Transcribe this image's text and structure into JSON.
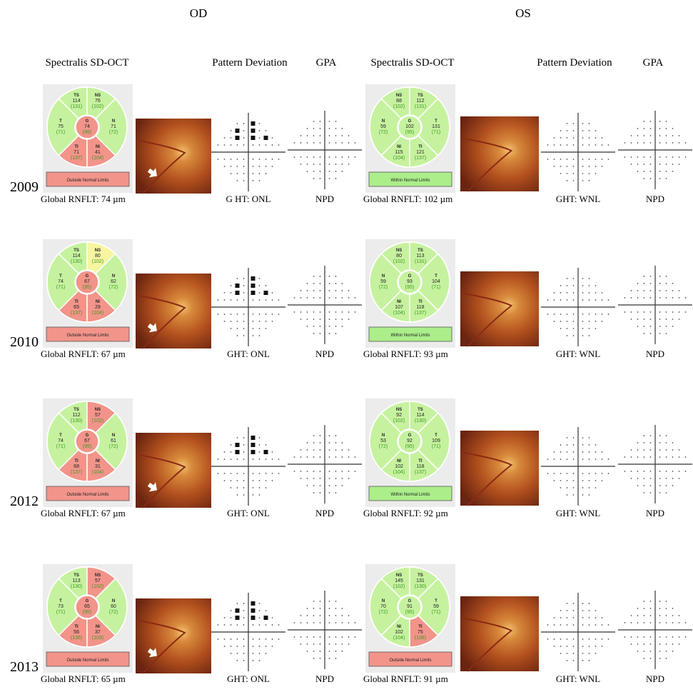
{
  "header": {
    "od": "OD",
    "os": "OS"
  },
  "columns": {
    "od": [
      "Spectralis SD-OCT",
      "Pattern Deviation",
      "GPA"
    ],
    "os": [
      "Spectralis SD-OCT",
      "Pattern Deviation",
      "GPA"
    ]
  },
  "rows": [
    {
      "year": "2009",
      "od": {
        "sectors": [
          {
            "name": "TS",
            "value": 114,
            "normal": "(131)",
            "color": "#c6f29f"
          },
          {
            "name": "NS",
            "value": 76,
            "normal": "(102)",
            "color": "#c6f29f"
          },
          {
            "name": "T",
            "value": 75,
            "normal": "(71)",
            "color": "#c6f29f"
          },
          {
            "name": "N",
            "value": 71,
            "normal": "(72)",
            "color": "#c6f29f"
          },
          {
            "name": "TI",
            "value": 71,
            "normal": "(137)",
            "color": "#f2948a"
          },
          {
            "name": "NI",
            "value": 41,
            "normal": "(104)",
            "color": "#f2948a"
          },
          {
            "name": "G",
            "value": 74,
            "normal": "(95)",
            "color": "#f2948a"
          }
        ],
        "status": {
          "text": "Outside Normal Limits",
          "color": "#f2948a"
        },
        "global": "Global RNFLT: 74 µm",
        "pd": "G HT: ONL",
        "gpa": "NPD"
      },
      "os": {
        "sectors": [
          {
            "name": "NS",
            "value": 88,
            "normal": "(102)",
            "color": "#c6f29f"
          },
          {
            "name": "TS",
            "value": 112,
            "normal": "(131)",
            "color": "#c6f29f"
          },
          {
            "name": "N",
            "value": 59,
            "normal": "(72)",
            "color": "#c6f29f"
          },
          {
            "name": "T",
            "value": 131,
            "normal": "(71)",
            "color": "#c6f29f"
          },
          {
            "name": "NI",
            "value": 115,
            "normal": "(104)",
            "color": "#c6f29f"
          },
          {
            "name": "TI",
            "value": 121,
            "normal": "(137)",
            "color": "#c6f29f"
          },
          {
            "name": "G",
            "value": 102,
            "normal": "(95)",
            "color": "#c6f29f"
          }
        ],
        "status": {
          "text": "Within Normal Limits",
          "color": "#abee8a"
        },
        "global": "Global RNFLT: 102 µm",
        "pd": "GHT: WNL",
        "gpa": "NPD"
      }
    },
    {
      "year": "2010",
      "od": {
        "sectors": [
          {
            "name": "TS",
            "value": 114,
            "normal": "(130)",
            "color": "#c6f29f"
          },
          {
            "name": "NS",
            "value": 80,
            "normal": "(102)",
            "color": "#f6f5a0"
          },
          {
            "name": "T",
            "value": 74,
            "normal": "(71)",
            "color": "#c6f29f"
          },
          {
            "name": "N",
            "value": 62,
            "normal": "(72)",
            "color": "#c6f29f"
          },
          {
            "name": "TI",
            "value": 65,
            "normal": "(137)",
            "color": "#f2948a"
          },
          {
            "name": "NI",
            "value": 29,
            "normal": "(104)",
            "color": "#f2948a"
          },
          {
            "name": "G",
            "value": 67,
            "normal": "(95)",
            "color": "#f2948a"
          }
        ],
        "status": {
          "text": "Outside Normal Limits",
          "color": "#f2948a"
        },
        "global": "Global RNFLT: 67 µm",
        "pd": "GHT: ONL",
        "gpa": "NPD"
      },
      "os": {
        "sectors": [
          {
            "name": "NS",
            "value": 80,
            "normal": "(102)",
            "color": "#c6f29f"
          },
          {
            "name": "TS",
            "value": 113,
            "normal": "(131)",
            "color": "#c6f29f"
          },
          {
            "name": "N",
            "value": 59,
            "normal": "(72)",
            "color": "#c6f29f"
          },
          {
            "name": "T",
            "value": 104,
            "normal": "(71)",
            "color": "#c6f29f"
          },
          {
            "name": "NI",
            "value": 107,
            "normal": "(104)",
            "color": "#c6f29f"
          },
          {
            "name": "TI",
            "value": 118,
            "normal": "(137)",
            "color": "#c6f29f"
          },
          {
            "name": "G",
            "value": 93,
            "normal": "(95)",
            "color": "#c6f29f"
          }
        ],
        "status": {
          "text": "Within Normal Limits",
          "color": "#abee8a"
        },
        "global": "Global RNFLT: 93 µm",
        "pd": "GHT: WNL",
        "gpa": "NPD"
      }
    },
    {
      "year": "2012",
      "od": {
        "sectors": [
          {
            "name": "TS",
            "value": 112,
            "normal": "(130)",
            "color": "#c6f29f"
          },
          {
            "name": "NS",
            "value": 57,
            "normal": "(102)",
            "color": "#f2948a"
          },
          {
            "name": "T",
            "value": 74,
            "normal": "(71)",
            "color": "#c6f29f"
          },
          {
            "name": "N",
            "value": 61,
            "normal": "(72)",
            "color": "#c6f29f"
          },
          {
            "name": "TI",
            "value": 68,
            "normal": "(137)",
            "color": "#f2948a"
          },
          {
            "name": "NI",
            "value": 31,
            "normal": "(104)",
            "color": "#f2948a"
          },
          {
            "name": "G",
            "value": 67,
            "normal": "(95)",
            "color": "#f2948a"
          }
        ],
        "status": {
          "text": "Outside Normal Limits",
          "color": "#f2948a"
        },
        "global": "Global RNFLT: 67 µm",
        "pd": "GHT: ONL",
        "gpa": "NPD"
      },
      "os": {
        "sectors": [
          {
            "name": "NS",
            "value": 92,
            "normal": "(102)",
            "color": "#c6f29f"
          },
          {
            "name": "TS",
            "value": 114,
            "normal": "(130)",
            "color": "#c6f29f"
          },
          {
            "name": "N",
            "value": 53,
            "normal": "(72)",
            "color": "#c6f29f"
          },
          {
            "name": "T",
            "value": 109,
            "normal": "(71)",
            "color": "#c6f29f"
          },
          {
            "name": "NI",
            "value": 102,
            "normal": "(104)",
            "color": "#c6f29f"
          },
          {
            "name": "TI",
            "value": 118,
            "normal": "(137)",
            "color": "#c6f29f"
          },
          {
            "name": "G",
            "value": 92,
            "normal": "(95)",
            "color": "#c6f29f"
          }
        ],
        "status": {
          "text": "Within Normal Limits",
          "color": "#abee8a"
        },
        "global": "Global RNFLT: 92 µm",
        "pd": "GHT: WNL",
        "gpa": "NPD"
      }
    },
    {
      "year": "2013",
      "od": {
        "sectors": [
          {
            "name": "TS",
            "value": 113,
            "normal": "(130)",
            "color": "#c6f29f"
          },
          {
            "name": "NS",
            "value": 57,
            "normal": "(102)",
            "color": "#f2948a"
          },
          {
            "name": "T",
            "value": 73,
            "normal": "(71)",
            "color": "#c6f29f"
          },
          {
            "name": "N",
            "value": 60,
            "normal": "(72)",
            "color": "#c6f29f"
          },
          {
            "name": "TI",
            "value": 56,
            "normal": "(136)",
            "color": "#f2948a"
          },
          {
            "name": "NI",
            "value": 37,
            "normal": "(103)",
            "color": "#f2948a"
          },
          {
            "name": "G",
            "value": 65,
            "normal": "(95)",
            "color": "#f2948a"
          }
        ],
        "status": {
          "text": "Outside Normal Limits",
          "color": "#f2948a"
        },
        "global": "Global RNFLT: 65 µm",
        "pd": "GHT: ONL",
        "gpa": "NPD"
      },
      "os": {
        "sectors": [
          {
            "name": "NS",
            "value": 145,
            "normal": "(102)",
            "color": "#c6f29f"
          },
          {
            "name": "TS",
            "value": 131,
            "normal": "(130)",
            "color": "#c6f29f"
          },
          {
            "name": "N",
            "value": 70,
            "normal": "(72)",
            "color": "#c6f29f"
          },
          {
            "name": "T",
            "value": 59,
            "normal": "(71)",
            "color": "#c6f29f"
          },
          {
            "name": "NI",
            "value": 102,
            "normal": "(104)",
            "color": "#c6f29f"
          },
          {
            "name": "TI",
            "value": 75,
            "normal": "(136)",
            "color": "#f2948a"
          },
          {
            "name": "G",
            "value": 91,
            "normal": "(95)",
            "color": "#c6f29f"
          }
        ],
        "status": {
          "text": "Outside Normal Limits",
          "color": "#f2948a"
        },
        "global": "Global RNFLT: 91 µm",
        "pd": "GHT: WNL",
        "gpa": "NPD"
      }
    }
  ]
}
